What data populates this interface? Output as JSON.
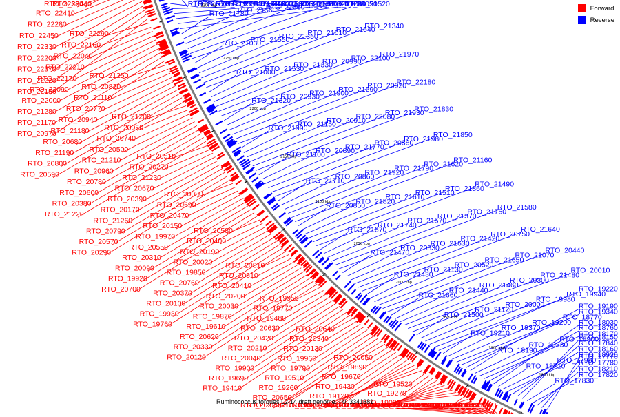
{
  "legend": {
    "forward_label": "Forward",
    "reverse_label": "Reverse",
    "forward_color": "#ff0000",
    "reverse_color": "#0000ff"
  },
  "caption": "Ruminococcus torques L2-14 draft genome. - 0..3341681",
  "ticks": [
    "2300 kbp",
    "2250 kbp",
    "2200 kbp",
    "2150 kbp",
    "2100 kbp",
    "2050 kbp",
    "2000 kbp",
    "1950 kbp",
    "1900 kbp",
    "1850 kbp"
  ],
  "forward_genes": [
    "RTO_22440",
    "RTO_22380",
    "RTO_22410",
    "RTO_22280",
    "RTO_22450",
    "RTO_22330",
    "RTO_22200",
    "RTO_22370",
    "RTO_22220",
    "RTO_22150",
    "RTO_22290",
    "RTO_22160",
    "RTO_22040",
    "RTO_22210",
    "RTO_22170",
    "RTO_22090",
    "RTO_22000",
    "RTO_21280",
    "RTO_21170",
    "RTO_20970",
    "RTO_21250",
    "RTO_20820",
    "RTO_21110",
    "RTO_20770",
    "RTO_20940",
    "RTO_21180",
    "RTO_20680",
    "RTO_21190",
    "RTO_20800",
    "RTO_20590",
    "RTO_21200",
    "RTO_20950",
    "RTO_20740",
    "RTO_20500",
    "RTO_21210",
    "RTO_20960",
    "RTO_20780",
    "RTO_20600",
    "RTO_20380",
    "RTO_21220",
    "RTO_20510",
    "RTO_20270",
    "RTO_21230",
    "RTO_20670",
    "RTO_20390",
    "RTO_20170",
    "RTO_21260",
    "RTO_20790",
    "RTO_20570",
    "RTO_20290",
    "RTO_20080",
    "RTO_20690",
    "RTO_20470",
    "RTO_20150",
    "RTO_19970",
    "RTO_20550",
    "RTO_20310",
    "RTO_20090",
    "RTO_19920",
    "RTO_20700",
    "RTO_20580",
    "RTO_20400",
    "RTO_20190",
    "RTO_20020",
    "RTO_19850",
    "RTO_20760",
    "RTO_20370",
    "RTO_20100",
    "RTO_19930",
    "RTO_19760",
    "RTO_20810",
    "RTO_20610",
    "RTO_20410",
    "RTO_20200",
    "RTO_20030",
    "RTO_19870",
    "RTO_19610",
    "RTO_20620",
    "RTO_20330",
    "RTO_20120",
    "RTO_19950",
    "RTO_19770",
    "RTO_19480",
    "RTO_20630",
    "RTO_20420",
    "RTO_20210",
    "RTO_20040",
    "RTO_19900",
    "RTO_19690",
    "RTO_19410",
    "RTO_20640",
    "RTO_20340",
    "RTO_20130",
    "RTO_19960",
    "RTO_19790",
    "RTO_19510",
    "RTO_19260",
    "RTO_20650",
    "RTO_20450",
    "RTO_20220",
    "RTO_20050",
    "RTO_19890",
    "RTO_19670",
    "RTO_19430",
    "RTO_19120",
    "RTO_20710",
    "RTO_20480",
    "RTO_20230",
    "RTO_20060",
    "RTO_19810",
    "RTO_19520",
    "RTO_19270",
    "RTO_19000",
    "RTO_20240",
    "RTO_20070",
    "RTO_19880",
    "RTO_19630",
    "RTO_19390",
    "RTO_19100",
    "RTO_18890",
    "RTO_20350",
    "RTO_20110",
    "RTO_19820",
    "RTO_19530",
    "RTO_19250",
    "RTO_18990",
    "RTO_18740",
    "RTO_20360",
    "RTO_20160",
    "RTO_19560",
    "RTO_19350",
    "RTO_19080",
    "RTO_18870",
    "RTO_18570",
    "RTO_20180",
    "RTO_18370",
    "RTO_20260",
    "RTO_18620",
    "RTO_18180"
  ],
  "reverse_genes": [
    "RTO_22060",
    "RTO_21950",
    "RTO_21810",
    "RTO_21600",
    "RTO_21400",
    "RTO_21060",
    "RTO_22050",
    "RTO_21940",
    "RTO_21800",
    "RTO_21590",
    "RTO_21390",
    "RTO_21050",
    "RTO_21780",
    "RTO_21560",
    "RTO_21360",
    "RTO_21040",
    "RTO_21720",
    "RTO_21520",
    "RTO_21030",
    "RTO_21550",
    "RTO_21350",
    "RTO_21010",
    "RTO_21540",
    "RTO_21340",
    "RTO_21000",
    "RTO_21530",
    "RTO_21330",
    "RTO_20990",
    "RTO_22100",
    "RTO_21970",
    "RTO_21320",
    "RTO_20930",
    "RTO_21900",
    "RTO_21290",
    "RTO_20920",
    "RTO_22180",
    "RTO_21990",
    "RTO_21150",
    "RTO_20910",
    "RTO_22080",
    "RTO_21930",
    "RTO_21830",
    "RTO_21100",
    "RTO_20890",
    "RTO_21770",
    "RTO_20880",
    "RTO_21980",
    "RTO_21850",
    "RTO_21710",
    "RTO_20860",
    "RTO_21920",
    "RTO_21790",
    "RTO_21620",
    "RTO_21160",
    "RTO_20850",
    "RTO_21820",
    "RTO_21610",
    "RTO_21510",
    "RTO_21860",
    "RTO_21490",
    "RTO_21870",
    "RTO_21740",
    "RTO_21570",
    "RTO_21370",
    "RTO_21750",
    "RTO_21580",
    "RTO_21470",
    "RTO_20830",
    "RTO_21630",
    "RTO_21420",
    "RTO_20750",
    "RTO_21640",
    "RTO_21430",
    "RTO_21130",
    "RTO_20520",
    "RTO_21650",
    "RTO_21070",
    "RTO_20440",
    "RTO_21660",
    "RTO_21440",
    "RTO_21460",
    "RTO_20300",
    "RTO_21480",
    "RTO_20010",
    "RTO_21500",
    "RTO_21120",
    "RTO_20000",
    "RTO_19980",
    "RTO_19940",
    "RTO_19220",
    "RTO_19210",
    "RTO_19370",
    "RTO_19200",
    "RTO_18770",
    "RTO_19340",
    "RTO_19190",
    "RTO_18190",
    "RTO_19330",
    "RTO_18900",
    "RTO_18170",
    "RTO_18760",
    "RTO_18030",
    "RTO_18710",
    "RTO_17980",
    "RTO_18920",
    "RTO_18160",
    "RTO_17840",
    "RTO_18150",
    "RTO_17830",
    "RTO_17820",
    "RTO_18210",
    "RTO_17780",
    "RTO_17770"
  ]
}
